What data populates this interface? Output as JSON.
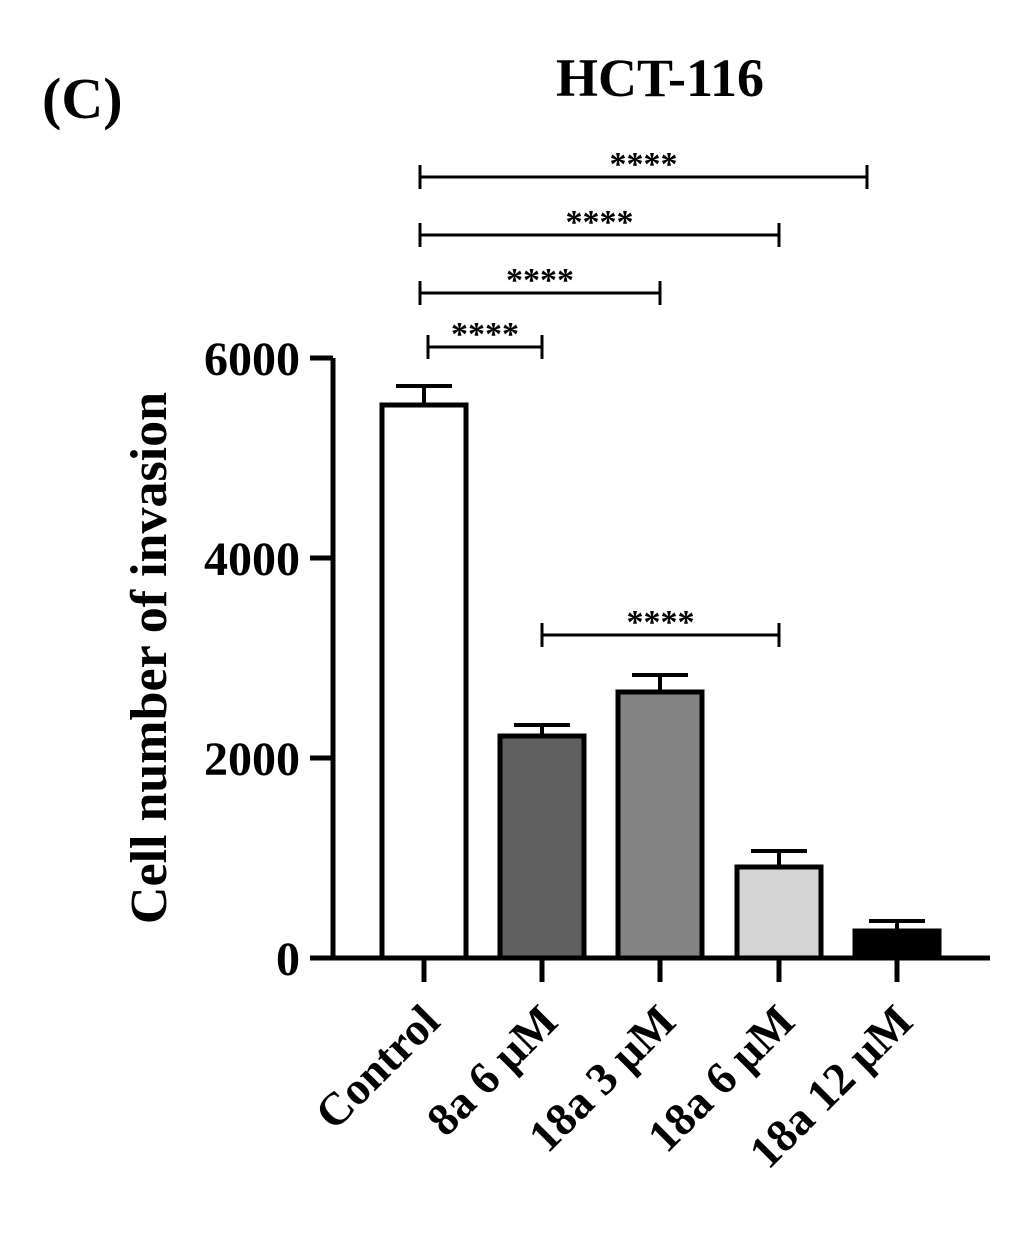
{
  "panel_label": "(C)",
  "chart_data": {
    "type": "bar",
    "title": "HCT-116",
    "xlabel": "",
    "ylabel": "Cell number of invasion",
    "ylim": [
      0,
      6000
    ],
    "yticks": [
      0,
      2000,
      4000,
      6000
    ],
    "categories": [
      "Control",
      "8a 6 μM",
      "18a 3 μM",
      "18a 6 μM",
      "18a 12 μM"
    ],
    "values": [
      5530,
      2220,
      2660,
      910,
      270
    ],
    "errors": [
      190,
      110,
      170,
      160,
      100
    ],
    "bar_colors": [
      "#ffffff",
      "#606060",
      "#838383",
      "#d4d4d4",
      "#000000"
    ],
    "grid": false,
    "significance": [
      {
        "from": 0,
        "to": 4,
        "label": "****"
      },
      {
        "from": 0,
        "to": 3,
        "label": "****"
      },
      {
        "from": 0,
        "to": 2,
        "label": "****"
      },
      {
        "from": 0,
        "to": 1,
        "label": "****"
      },
      {
        "from": 1,
        "to": 3,
        "label": "****"
      }
    ]
  }
}
